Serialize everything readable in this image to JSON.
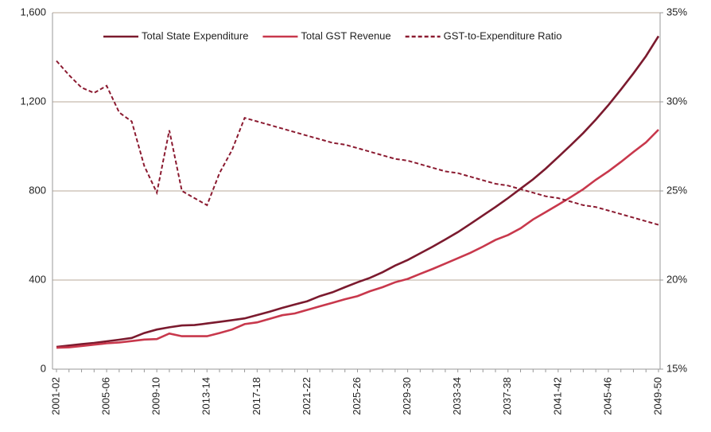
{
  "chart_data": {
    "type": "line",
    "categories": [
      "2001-02",
      null,
      null,
      null,
      "2005-06",
      null,
      null,
      null,
      "2009-10",
      null,
      null,
      null,
      "2013-14",
      null,
      null,
      null,
      "2017-18",
      null,
      null,
      null,
      "2021-22",
      null,
      null,
      null,
      "2025-26",
      null,
      null,
      null,
      "2029-30",
      null,
      null,
      null,
      "2033-34",
      null,
      null,
      null,
      "2037-38",
      null,
      null,
      null,
      "2041-42",
      null,
      null,
      null,
      "2045-46",
      null,
      null,
      null,
      "2049-50"
    ],
    "series": [
      {
        "name": "Total State Expenditure",
        "color": "#7b1a2e",
        "values": [
          100,
          106,
          112,
          118,
          125,
          132,
          140,
          162,
          178,
          188,
          196,
          198,
          205,
          212,
          220,
          228,
          243,
          258,
          275,
          290,
          305,
          328,
          345,
          368,
          390,
          410,
          435,
          465,
          490,
          520,
          550,
          582,
          615,
          652,
          690,
          728,
          768,
          810,
          852,
          900,
          952,
          1005,
          1060,
          1120,
          1185,
          1255,
          1328,
          1405,
          1495
        ]
      },
      {
        "name": "Total GST Revenue",
        "color": "#c8384c",
        "values": [
          96,
          98,
          104,
          110,
          116,
          120,
          126,
          133,
          135,
          160,
          148,
          148,
          148,
          162,
          178,
          202,
          210,
          226,
          242,
          250,
          266,
          282,
          298,
          314,
          328,
          350,
          368,
          390,
          405,
          428,
          450,
          474,
          498,
          522,
          550,
          580,
          602,
          632,
          672,
          705,
          738,
          772,
          808,
          850,
          888,
          930,
          975,
          1018,
          1075
        ]
      },
      {
        "name": "GST-to-Expenditure Ratio",
        "color": "#8b1a30",
        "dashed": true,
        "axis": "y2",
        "values": [
          32.3,
          31.5,
          30.8,
          30.5,
          30.9,
          29.4,
          28.9,
          26.4,
          24.9,
          28.4,
          25.0,
          24.6,
          24.2,
          26.0,
          27.3,
          29.1,
          28.9,
          28.7,
          28.5,
          28.3,
          28.1,
          27.9,
          27.7,
          27.6,
          27.4,
          27.2,
          27.0,
          26.8,
          26.7,
          26.5,
          26.3,
          26.1,
          26.0,
          25.8,
          25.6,
          25.4,
          25.3,
          25.1,
          24.9,
          24.7,
          24.6,
          24.4,
          24.2,
          24.1,
          23.9,
          23.7,
          23.5,
          23.3,
          23.1
        ]
      }
    ],
    "ylim": [
      0,
      1600
    ],
    "yticks": [
      0,
      400,
      800,
      {
        "value": 1200,
        "label": "1,200"
      },
      {
        "value": 1600,
        "label": "1,600"
      }
    ],
    "y2lim": [
      15,
      35
    ],
    "y2ticks": [
      {
        "value": 15,
        "label": "15%"
      },
      {
        "value": 20,
        "label": "20%"
      },
      {
        "value": 25,
        "label": "25%"
      },
      {
        "value": 30,
        "label": "30%"
      },
      {
        "value": 35,
        "label": "35%"
      }
    ],
    "grid": true,
    "legend": "top"
  }
}
